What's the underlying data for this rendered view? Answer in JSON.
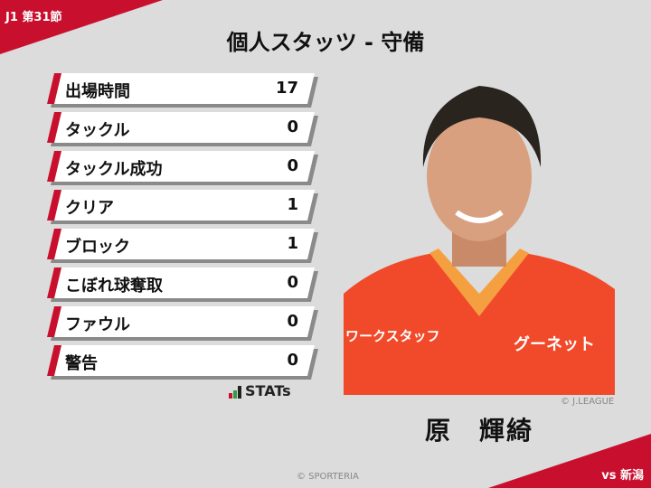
{
  "header": {
    "round": "J1 第31節",
    "title": "個人スタッツ - 守備"
  },
  "stats": [
    {
      "label": "出場時間",
      "value": "17"
    },
    {
      "label": "タックル",
      "value": "0"
    },
    {
      "label": "タックル成功",
      "value": "0"
    },
    {
      "label": "クリア",
      "value": "1"
    },
    {
      "label": "ブロック",
      "value": "1"
    },
    {
      "label": "こぼれ球奪取",
      "value": "0"
    },
    {
      "label": "ファウル",
      "value": "0"
    },
    {
      "label": "警告",
      "value": "0"
    }
  ],
  "logo": {
    "text": "STATs"
  },
  "player": {
    "name": "原　輝綺",
    "photo_credit": "© J.LEAGUE",
    "jersey_text": "ワークスタッフ",
    "sponsor": "グーネット"
  },
  "footer": {
    "opponent": "vs 新潟",
    "credit": "© SPORTERIA"
  },
  "colors": {
    "accent": "#c8102e",
    "background": "#dcdcdc",
    "jersey": "#f04a2a"
  }
}
